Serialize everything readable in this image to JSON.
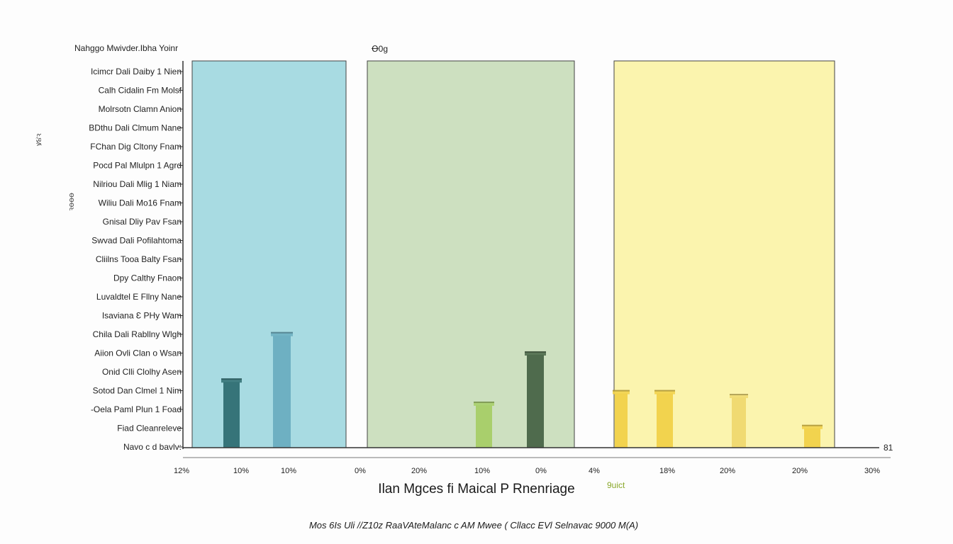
{
  "chart_data": {
    "type": "bar",
    "title": "",
    "top_left_label": "Nahggo Mwivder.Ibha Yoinr",
    "top_mid_label": "Ꝋ0g",
    "side_label": "ꝟ૪ꝛ",
    "side_vertical_label": "ꝛꝋꝋꝋ",
    "xlabel": "Ilan Mgces fi Maical P Rnenriage",
    "xlabel_note": "9uict",
    "caption": "Mos 6Is Uli //Z10z RaaVAteMalanc c AM Mwee ( Cllacc EVl Selnavac 9000 M(A)",
    "right_axis_label": "81",
    "yticks": [
      "Icimcr Dali Daiby 1 Nien",
      "Calh Cidalin Fm Molsf",
      "Molrsotn Clamn Anion",
      "BDthu Dali Clmum Nane",
      "FChan Dig Cltony Fnam",
      "Pocd Pal Mlulpn 1 Agrd",
      "Nilriou Dali Mlig 1 Niam",
      "Wiliu Dali Mo16 Fnam",
      "Gnisal Dliy Pav Fsan",
      "Swvad Dali Pofilahtoma",
      "Cliilns Tooa Balty Fsan",
      "Dpy Calthy Fnaon",
      "Luvaldtel E Fllny Nane",
      "Isaviana Ɛ PHy Wam",
      "Chila Dali Rabllny Wlgh",
      "Aiion Ovli Clan o Wsan",
      "Onid Clli Clolhy Asen",
      "Sotod Dan Clmel 1 Nim",
      "-Oela Paml Plun 1 Foad",
      "Fiad Cleanreleve",
      "Navo c d bavlv:"
    ],
    "xticks": [
      "12%",
      "10%",
      "10%",
      "0%",
      "20%",
      "10%",
      "0%",
      "4%",
      "18%",
      "20%",
      "20%",
      "30%"
    ],
    "panels": [
      {
        "name": "",
        "color": "#a8dbe2"
      },
      {
        "name": "",
        "color": "#cde0c0"
      },
      {
        "name": "",
        "color": "#fbf4ae"
      }
    ],
    "series": [
      {
        "panel": 0,
        "color": "#367479",
        "values": [
          17
        ]
      },
      {
        "panel": 0,
        "color": "#6eb0c2",
        "values": [
          29
        ]
      },
      {
        "panel": 1,
        "color": "#a9cf6c",
        "values": [
          11
        ]
      },
      {
        "panel": 1,
        "color": "#4f6b4d",
        "values": [
          24
        ]
      },
      {
        "panel": 2,
        "color": "#f2d34e",
        "values": [
          14
        ]
      },
      {
        "panel": 2,
        "color": "#f2d34e",
        "values": [
          14
        ]
      },
      {
        "panel": 2,
        "color": "#f0da72",
        "values": [
          13
        ]
      },
      {
        "panel": 2,
        "color": "#f2d34e",
        "values": [
          5
        ]
      }
    ],
    "ylim": [
      0,
      100
    ],
    "grid": false,
    "legend": "none"
  }
}
